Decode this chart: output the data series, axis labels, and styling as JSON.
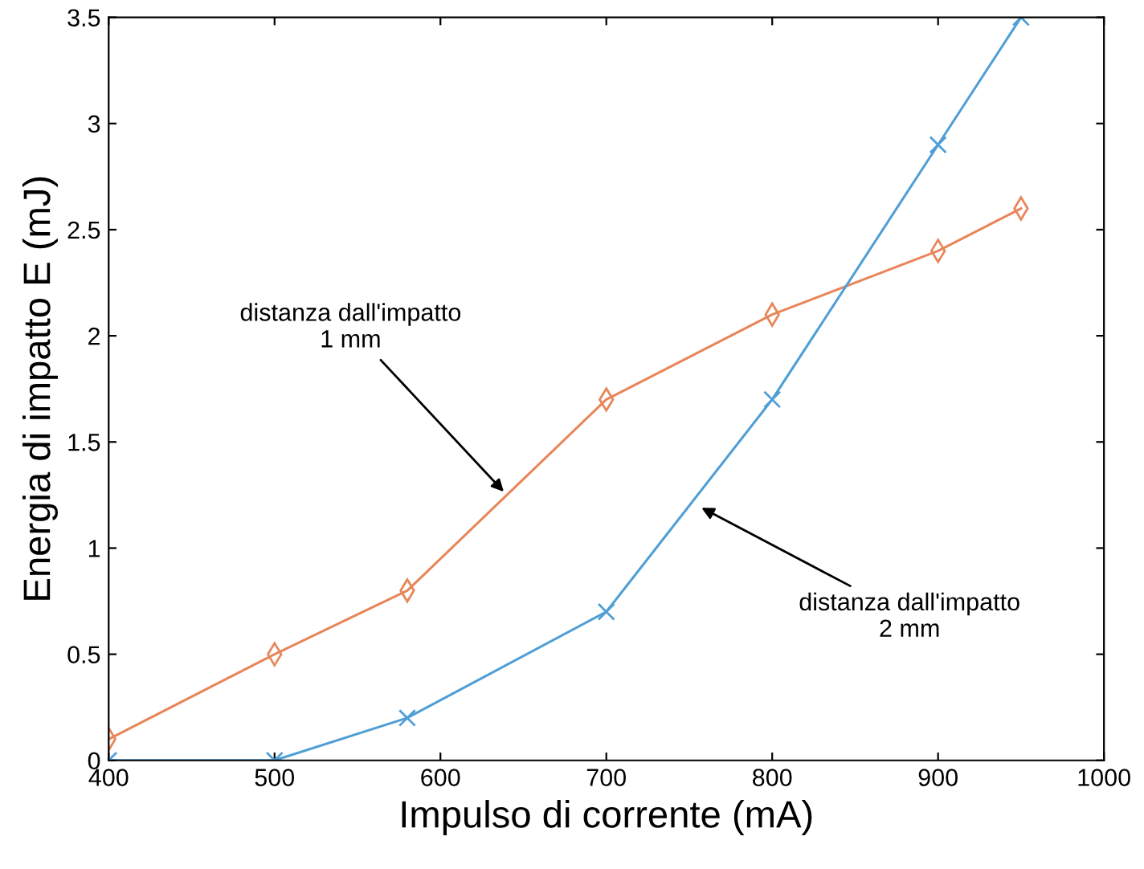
{
  "chart_data": {
    "type": "line",
    "xlabel": "Impulso di corrente (mA)",
    "ylabel": "Energia di impatto E (mJ)",
    "xlim": [
      400,
      1000
    ],
    "ylim": [
      0,
      3.5
    ],
    "xticks": [
      400,
      500,
      600,
      700,
      800,
      900,
      1000
    ],
    "yticks": [
      0,
      0.5,
      1,
      1.5,
      2,
      2.5,
      3,
      3.5
    ],
    "grid": false,
    "series": [
      {
        "color": "#e8865a",
        "marker": "diamond",
        "x": [
          400,
          500,
          580,
          700,
          800,
          900,
          950
        ],
        "values": [
          0.1,
          0.5,
          0.8,
          1.7,
          2.1,
          2.4,
          2.6
        ]
      },
      {
        "color": "#4f9fd6",
        "marker": "cross",
        "x": [
          400,
          500,
          580,
          700,
          800,
          900,
          950
        ],
        "values": [
          0,
          0,
          0.2,
          0.7,
          1.7,
          2.9,
          3.5
        ]
      }
    ],
    "annotations": [
      {
        "text": "distanza dall'impatto\n1 mm",
        "x": 640,
        "y": 1.25
      },
      {
        "text": "distanza dall'impatto\n2 mm",
        "x": 755,
        "y": 1.2
      }
    ]
  }
}
